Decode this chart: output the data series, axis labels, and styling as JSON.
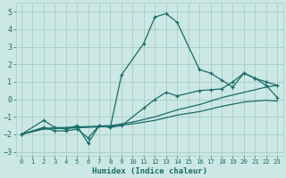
{
  "xlabel": "Humidex (Indice chaleur)",
  "xlim": [
    -0.5,
    23.5
  ],
  "ylim": [
    -3.2,
    5.5
  ],
  "yticks": [
    -3,
    -2,
    -1,
    0,
    1,
    2,
    3,
    4,
    5
  ],
  "xticks": [
    0,
    1,
    2,
    3,
    4,
    5,
    6,
    7,
    8,
    9,
    10,
    11,
    12,
    13,
    14,
    15,
    16,
    17,
    18,
    19,
    20,
    21,
    22,
    23
  ],
  "background_color": "#cce8e4",
  "grid_color": "#a8ccc8",
  "line_color": "#1a6b6b",
  "series": [
    {
      "x": [
        0,
        2,
        3,
        4,
        5,
        6,
        7,
        8,
        9,
        11,
        12,
        13,
        14,
        16,
        17,
        18,
        19,
        20,
        21,
        22,
        23
      ],
      "y": [
        -2.0,
        -1.2,
        -1.6,
        -1.7,
        -1.5,
        -2.5,
        -1.5,
        -1.6,
        1.4,
        3.2,
        4.7,
        4.9,
        4.4,
        1.7,
        1.5,
        1.1,
        0.7,
        1.5,
        1.2,
        1.0,
        0.8
      ],
      "marker": true
    },
    {
      "x": [
        0,
        2,
        4,
        6,
        8,
        10,
        12,
        14,
        16,
        18,
        20,
        22,
        23
      ],
      "y": [
        -2.0,
        -1.7,
        -1.65,
        -1.6,
        -1.55,
        -1.4,
        -1.2,
        -0.9,
        -0.7,
        -0.4,
        -0.15,
        -0.05,
        -0.1
      ],
      "marker": false
    },
    {
      "x": [
        0,
        2,
        4,
        6,
        8,
        10,
        12,
        14,
        16,
        18,
        20,
        22,
        23
      ],
      "y": [
        -2.0,
        -1.65,
        -1.6,
        -1.55,
        -1.5,
        -1.3,
        -1.0,
        -0.6,
        -0.3,
        0.1,
        0.4,
        0.7,
        0.8
      ],
      "marker": false
    },
    {
      "x": [
        0,
        2,
        3,
        4,
        5,
        6,
        7,
        8,
        9,
        11,
        12,
        13,
        14,
        16,
        17,
        18,
        19,
        20,
        21,
        22,
        23
      ],
      "y": [
        -2.0,
        -1.6,
        -1.8,
        -1.8,
        -1.7,
        -2.2,
        -1.5,
        -1.6,
        -1.5,
        -0.5,
        0.0,
        0.4,
        0.2,
        0.5,
        0.55,
        0.6,
        1.0,
        1.5,
        1.2,
        0.8,
        0.1
      ],
      "marker": true
    }
  ]
}
